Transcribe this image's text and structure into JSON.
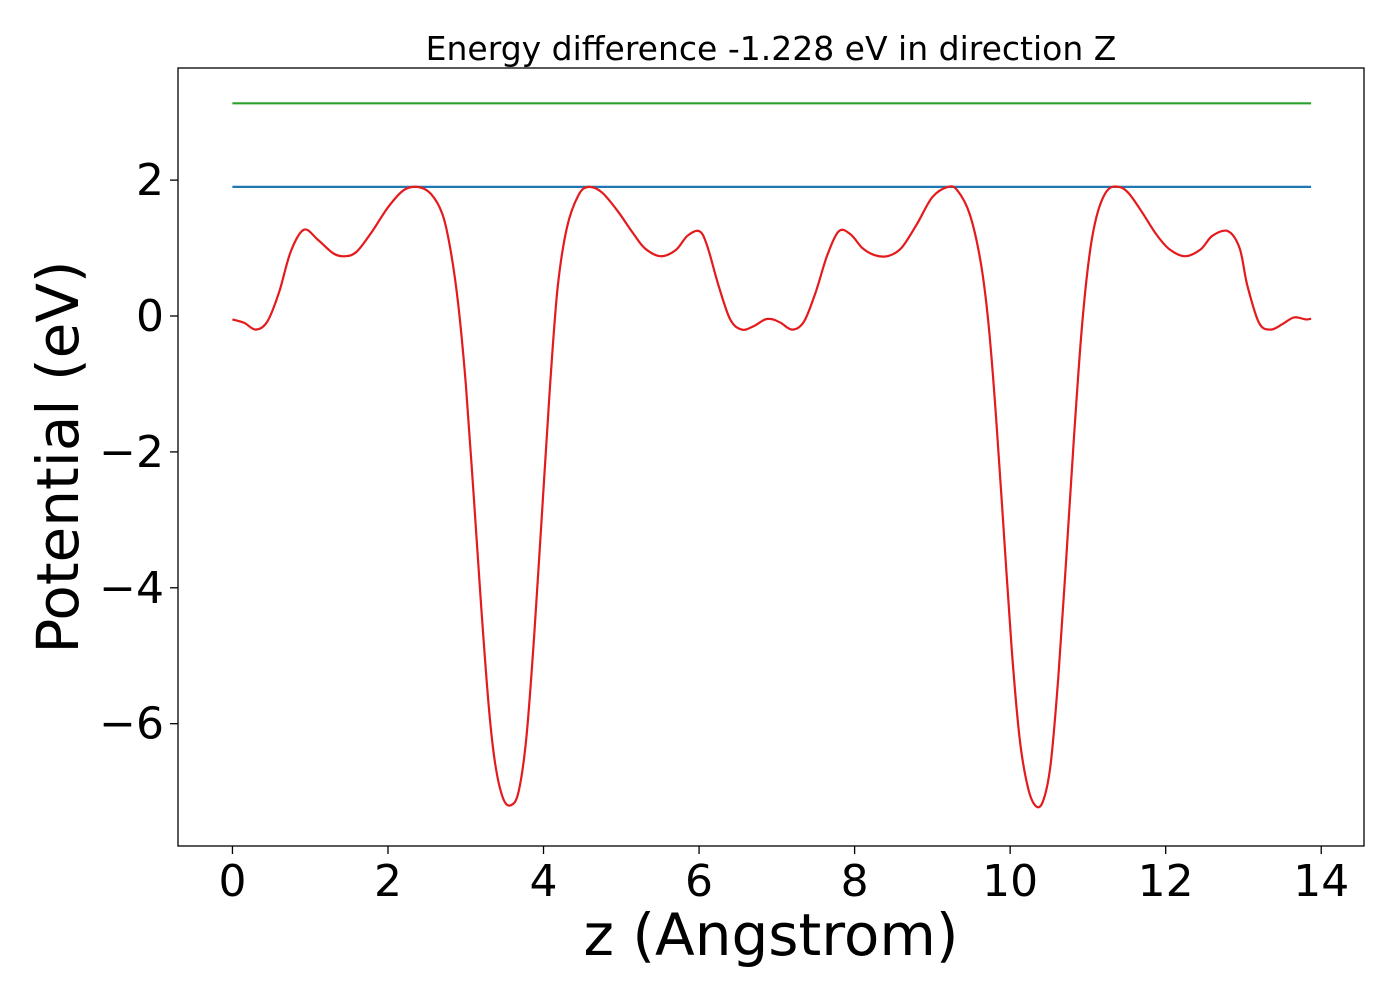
{
  "chart_data": {
    "type": "line",
    "title": "Energy difference -1.228 eV in direction Z",
    "xlabel": "z (Angstrom)",
    "ylabel": "Potential (eV)",
    "xlim": [
      -0.7,
      14.55
    ],
    "ylim": [
      -7.8,
      3.65
    ],
    "xticks": [
      {
        "value": 0,
        "label": "0"
      },
      {
        "value": 2,
        "label": "2"
      },
      {
        "value": 4,
        "label": "4"
      },
      {
        "value": 6,
        "label": "6"
      },
      {
        "value": 8,
        "label": "8"
      },
      {
        "value": 10,
        "label": "10"
      },
      {
        "value": 12,
        "label": "12"
      },
      {
        "value": 14,
        "label": "14"
      }
    ],
    "yticks": [
      {
        "value": 2,
        "label": "2"
      },
      {
        "value": 0,
        "label": "0"
      },
      {
        "value": -2,
        "label": "−2"
      },
      {
        "value": -4,
        "label": "−4"
      },
      {
        "value": -6,
        "label": "−6"
      }
    ],
    "grid": false,
    "series": [
      {
        "color": "#2ca02c",
        "x": [
          0,
          13.87
        ],
        "y": [
          3.13,
          3.13
        ]
      },
      {
        "color": "#1f77b4",
        "x": [
          0,
          13.87
        ],
        "y": [
          1.9,
          1.9
        ]
      },
      {
        "color": "#e41a1c",
        "x": [
          0,
          0.15,
          0.3,
          0.45,
          0.6,
          0.75,
          0.92,
          1.1,
          1.3,
          1.45,
          1.6,
          1.8,
          2.0,
          2.2,
          2.38,
          2.55,
          2.7,
          2.8,
          2.9,
          3.0,
          3.1,
          3.2,
          3.3,
          3.38,
          3.48,
          3.58,
          3.68,
          3.78,
          3.88,
          3.98,
          4.08,
          4.18,
          4.3,
          4.45,
          4.58,
          4.75,
          4.95,
          5.15,
          5.3,
          5.5,
          5.7,
          5.85,
          6.0,
          6.1,
          6.25,
          6.4,
          6.55,
          6.7,
          6.85,
          6.95,
          7.05,
          7.2,
          7.35,
          7.5,
          7.65,
          7.8,
          7.95,
          8.1,
          8.25,
          8.42,
          8.6,
          8.8,
          9.0,
          9.2,
          9.32,
          9.48,
          9.62,
          9.72,
          9.82,
          9.92,
          10.02,
          10.12,
          10.22,
          10.32,
          10.42,
          10.52,
          10.62,
          10.72,
          10.82,
          10.92,
          11.02,
          11.12,
          11.25,
          11.4,
          11.53,
          11.7,
          11.88,
          12.05,
          12.25,
          12.45,
          12.6,
          12.8,
          12.95,
          13.05,
          13.2,
          13.35,
          13.5,
          13.65,
          13.8,
          13.87
        ],
        "y": [
          -0.05,
          -0.1,
          -0.2,
          -0.08,
          0.35,
          0.95,
          1.27,
          1.12,
          0.92,
          0.88,
          0.95,
          1.25,
          1.6,
          1.85,
          1.9,
          1.8,
          1.5,
          1.0,
          0.2,
          -1.0,
          -2.6,
          -4.3,
          -5.8,
          -6.6,
          -7.1,
          -7.2,
          -7.0,
          -6.2,
          -4.7,
          -2.9,
          -1.1,
          0.4,
          1.3,
          1.78,
          1.9,
          1.82,
          1.55,
          1.22,
          1.0,
          0.88,
          0.97,
          1.18,
          1.25,
          1.05,
          0.45,
          -0.05,
          -0.2,
          -0.15,
          -0.05,
          -0.05,
          -0.1,
          -0.2,
          -0.08,
          0.35,
          0.9,
          1.25,
          1.2,
          1.0,
          0.9,
          0.88,
          1.0,
          1.35,
          1.75,
          1.9,
          1.85,
          1.5,
          0.8,
          -0.1,
          -1.5,
          -3.2,
          -4.9,
          -6.2,
          -6.9,
          -7.2,
          -7.15,
          -6.6,
          -5.3,
          -3.6,
          -1.8,
          -0.2,
          0.9,
          1.5,
          1.85,
          1.9,
          1.8,
          1.52,
          1.2,
          0.98,
          0.88,
          0.98,
          1.18,
          1.25,
          1.0,
          0.45,
          -0.1,
          -0.2,
          -0.12,
          -0.02,
          -0.05,
          -0.04
        ]
      }
    ]
  }
}
